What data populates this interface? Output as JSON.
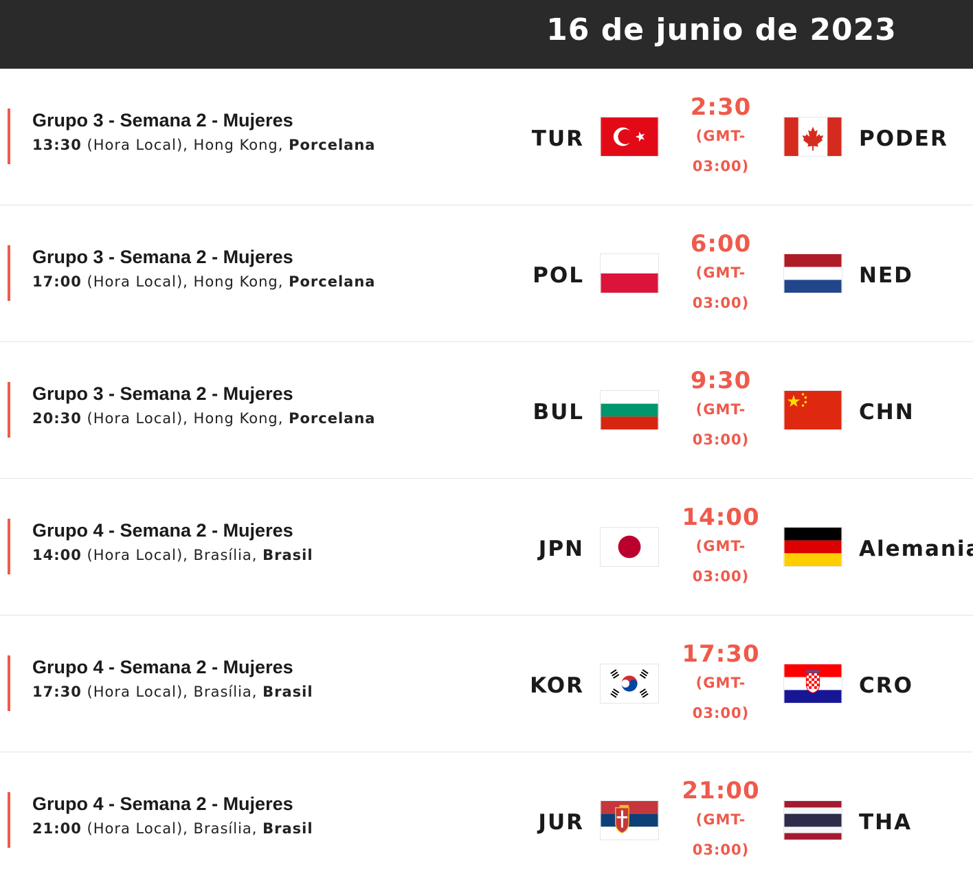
{
  "header": {
    "date": "16 de junio de 2023"
  },
  "matches": [
    {
      "title": "Grupo 3 - Semana 2 - Mujeres",
      "local_time": "13:30",
      "local_label": "(Hora Local),",
      "city": "Hong Kong,",
      "country": "Porcelana",
      "home_code": "TUR",
      "home_flag": "turkey-flag",
      "time": "2:30",
      "tz_line1": "(GMT-",
      "tz_line2": "03:00)",
      "away_code": "PODER",
      "away_flag": "canada-flag"
    },
    {
      "title": "Grupo 3 - Semana 2 - Mujeres",
      "local_time": "17:00",
      "local_label": "(Hora Local),",
      "city": "Hong Kong,",
      "country": "Porcelana",
      "home_code": "POL",
      "home_flag": "poland-flag",
      "time": "6:00",
      "tz_line1": "(GMT-",
      "tz_line2": "03:00)",
      "away_code": "NED",
      "away_flag": "netherlands-flag"
    },
    {
      "title": "Grupo 3 - Semana 2 - Mujeres",
      "local_time": "20:30",
      "local_label": "(Hora Local),",
      "city": "Hong Kong,",
      "country": "Porcelana",
      "home_code": "BUL",
      "home_flag": "bulgaria-flag",
      "time": "9:30",
      "tz_line1": "(GMT-",
      "tz_line2": "03:00)",
      "away_code": "CHN",
      "away_flag": "china-flag"
    },
    {
      "title": "Grupo 4 - Semana 2 - Mujeres",
      "local_time": "14:00",
      "local_label": "(Hora Local),",
      "city": "Brasília,",
      "country": "Brasil",
      "home_code": "JPN",
      "home_flag": "japan-flag",
      "time": "14:00",
      "tz_line1": "(GMT-",
      "tz_line2": "03:00)",
      "away_code": "Alemania",
      "away_flag": "germany-flag"
    },
    {
      "title": "Grupo 4 - Semana 2 - Mujeres",
      "local_time": "17:30",
      "local_label": "(Hora Local),",
      "city": "Brasília,",
      "country": "Brasil",
      "home_code": "KOR",
      "home_flag": "korea-flag",
      "time": "17:30",
      "tz_line1": "(GMT-",
      "tz_line2": "03:00)",
      "away_code": "CRO",
      "away_flag": "croatia-flag"
    },
    {
      "title": "Grupo 4 - Semana 2 - Mujeres",
      "local_time": "21:00",
      "local_label": "(Hora Local),",
      "city": "Brasília,",
      "country": "Brasil",
      "home_code": "JUR",
      "home_flag": "serbia-flag",
      "time": "21:00",
      "tz_line1": "(GMT-",
      "tz_line2": "03:00)",
      "away_code": "THA",
      "away_flag": "thailand-flag"
    }
  ],
  "colors": {
    "accent": "#ef5a4b",
    "header_bg": "#2a2a2a"
  }
}
